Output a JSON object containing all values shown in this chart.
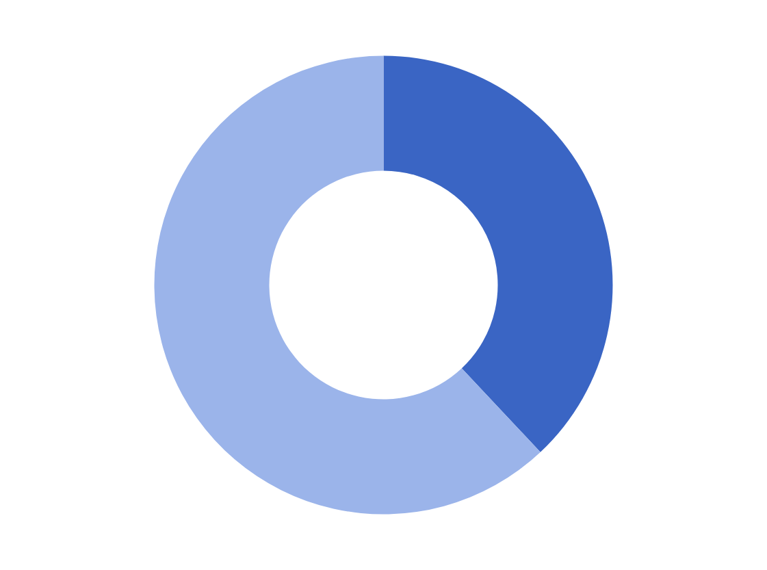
{
  "chart_data": {
    "type": "donut",
    "categories": [
      null,
      null
    ],
    "values": [
      38,
      62
    ],
    "colors": [
      "#3a65c4",
      "#9bb4ea"
    ]
  }
}
